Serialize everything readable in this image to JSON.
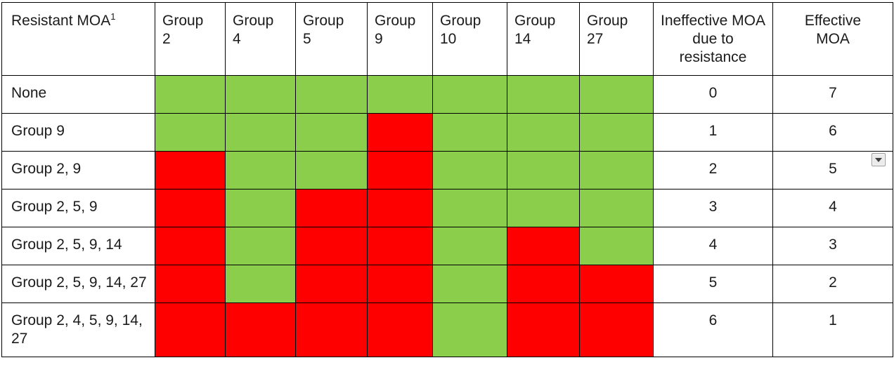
{
  "table": {
    "border_color": "#000000",
    "cell_colors": {
      "effective": "#8BCE4B",
      "ineffective": "#FF0000"
    },
    "header": {
      "resistant_moa_label": "Resistant MOA",
      "resistant_moa_superscript": "1",
      "group_columns": [
        "Group 2",
        "Group 4",
        "Group 5",
        "Group 9",
        "Group 10",
        "Group 14",
        "Group 27"
      ],
      "ineffective_label": "Ineffective MOA due to resistance",
      "effective_label": "Effective MOA"
    },
    "rows": [
      {
        "resistant_moa": "None",
        "group_status": [
          "effective",
          "effective",
          "effective",
          "effective",
          "effective",
          "effective",
          "effective"
        ],
        "ineffective_count": "0",
        "effective_count": "7",
        "has_dropdown": false
      },
      {
        "resistant_moa": "Group 9",
        "group_status": [
          "effective",
          "effective",
          "effective",
          "ineffective",
          "effective",
          "effective",
          "effective"
        ],
        "ineffective_count": "1",
        "effective_count": "6",
        "has_dropdown": false
      },
      {
        "resistant_moa": "Group 2, 9",
        "group_status": [
          "ineffective",
          "effective",
          "effective",
          "ineffective",
          "effective",
          "effective",
          "effective"
        ],
        "ineffective_count": "2",
        "effective_count": "5",
        "has_dropdown": true
      },
      {
        "resistant_moa": "Group 2, 5, 9",
        "group_status": [
          "ineffective",
          "effective",
          "ineffective",
          "ineffective",
          "effective",
          "effective",
          "effective"
        ],
        "ineffective_count": "3",
        "effective_count": "4",
        "has_dropdown": false
      },
      {
        "resistant_moa": "Group 2, 5, 9, 14",
        "group_status": [
          "ineffective",
          "effective",
          "ineffective",
          "ineffective",
          "effective",
          "ineffective",
          "effective"
        ],
        "ineffective_count": "4",
        "effective_count": "3",
        "has_dropdown": false
      },
      {
        "resistant_moa": "Group 2, 5, 9, 14, 27",
        "group_status": [
          "ineffective",
          "effective",
          "ineffective",
          "ineffective",
          "effective",
          "ineffective",
          "ineffective"
        ],
        "ineffective_count": "5",
        "effective_count": "2",
        "has_dropdown": false
      },
      {
        "resistant_moa": "Group 2, 4, 5, 9, 14, 27",
        "group_status": [
          "ineffective",
          "ineffective",
          "ineffective",
          "ineffective",
          "effective",
          "ineffective",
          "ineffective"
        ],
        "ineffective_count": "6",
        "effective_count": "1",
        "has_dropdown": false
      }
    ]
  }
}
